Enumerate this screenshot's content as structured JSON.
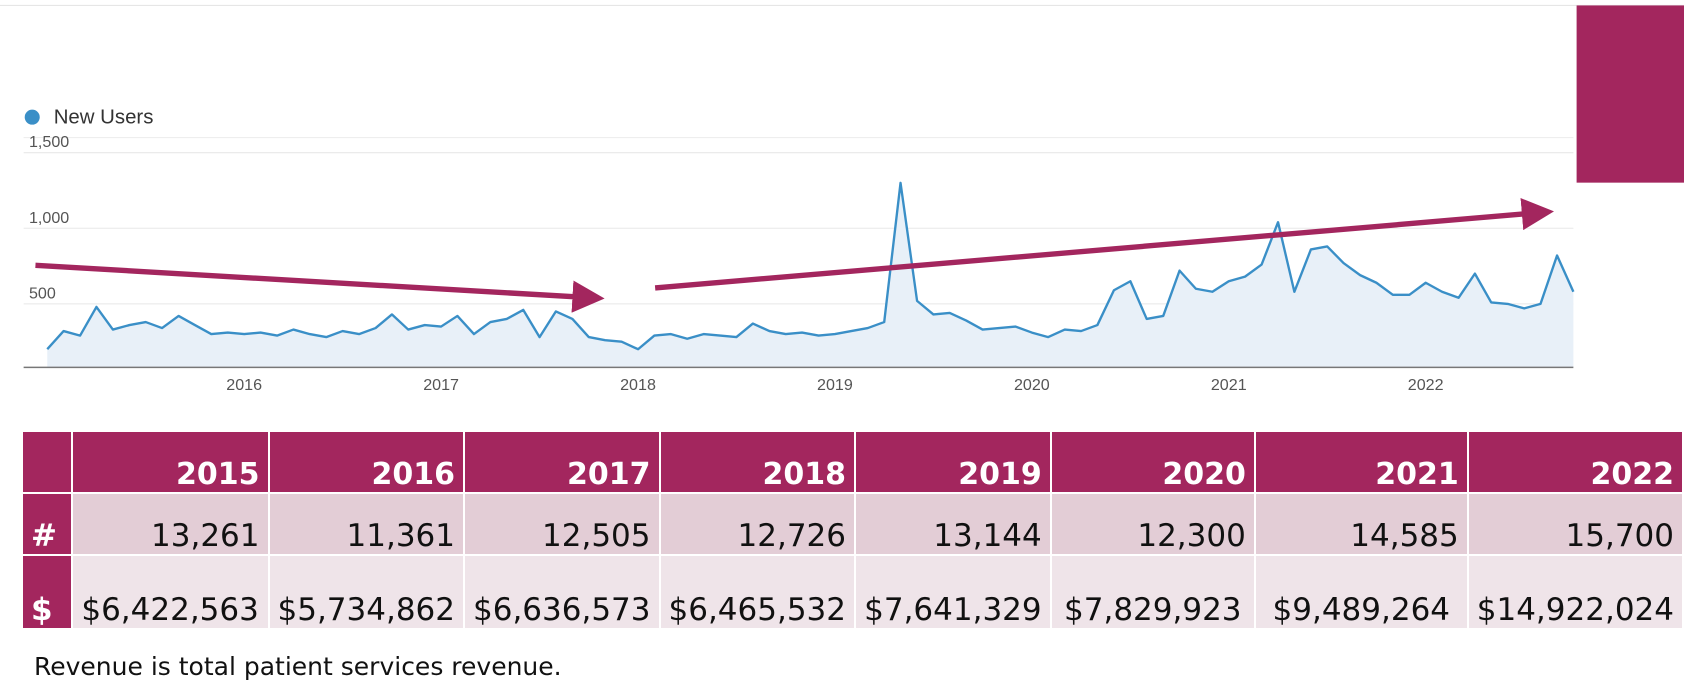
{
  "chart_data": {
    "type": "line",
    "legend": "top-left",
    "x": [
      2015.0,
      2015.083,
      2015.167,
      2015.25,
      2015.333,
      2015.417,
      2015.5,
      2015.583,
      2015.667,
      2015.75,
      2015.833,
      2015.917,
      2016.0,
      2016.083,
      2016.167,
      2016.25,
      2016.333,
      2016.417,
      2016.5,
      2016.583,
      2016.667,
      2016.75,
      2016.833,
      2016.917,
      2017.0,
      2017.083,
      2017.167,
      2017.25,
      2017.333,
      2017.417,
      2017.5,
      2017.583,
      2017.667,
      2017.75,
      2017.833,
      2017.917,
      2018.0,
      2018.083,
      2018.167,
      2018.25,
      2018.333,
      2018.417,
      2018.5,
      2018.583,
      2018.667,
      2018.75,
      2018.833,
      2018.917,
      2019.0,
      2019.083,
      2019.167,
      2019.25,
      2019.333,
      2019.417,
      2019.5,
      2019.583,
      2019.667,
      2019.75,
      2019.833,
      2019.917,
      2020.0,
      2020.083,
      2020.167,
      2020.25,
      2020.333,
      2020.417,
      2020.5,
      2020.583,
      2020.667,
      2020.75,
      2020.833,
      2020.917,
      2021.0,
      2021.083,
      2021.167,
      2021.25,
      2021.333,
      2021.417,
      2021.5,
      2021.583,
      2021.667,
      2021.75,
      2021.833,
      2021.917,
      2022.0,
      2022.083,
      2022.167,
      2022.25,
      2022.333,
      2022.417,
      2022.5,
      2022.583,
      2022.667,
      2022.75
    ],
    "series": [
      {
        "name": "New Users",
        "color": "#3a8fc7",
        "values": [
          200,
          320,
          290,
          480,
          330,
          360,
          380,
          340,
          420,
          360,
          300,
          310,
          300,
          310,
          290,
          330,
          300,
          280,
          320,
          300,
          340,
          430,
          330,
          360,
          350,
          420,
          300,
          380,
          400,
          460,
          280,
          450,
          400,
          280,
          260,
          250,
          200,
          290,
          300,
          270,
          300,
          290,
          280,
          370,
          320,
          300,
          310,
          290,
          300,
          320,
          340,
          380,
          1300,
          520,
          430,
          440,
          390,
          330,
          340,
          350,
          310,
          280,
          330,
          320,
          360,
          590,
          650,
          400,
          420,
          720,
          600,
          580,
          650,
          680,
          760,
          1040,
          580,
          860,
          880,
          770,
          690,
          640,
          560,
          560,
          640,
          580,
          540,
          700,
          510,
          500,
          470,
          500,
          820,
          580
        ]
      }
    ],
    "xlim": [
      2014.88,
      2022.75
    ],
    "xticks": [
      2016,
      2017,
      2018,
      2019,
      2020,
      2021,
      2022
    ],
    "ylim": [
      80,
      1600
    ],
    "yticks": [
      {
        "value": 500,
        "label": "500"
      },
      {
        "value": 1000,
        "label": "1,000"
      },
      {
        "value": 1500,
        "label": "1,500"
      }
    ],
    "grid": true
  },
  "table": {
    "columns": [
      "2015",
      "2016",
      "2017",
      "2018",
      "2019",
      "2020",
      "2021",
      "2022"
    ],
    "rows": [
      {
        "label": "#",
        "cells": [
          "13,261",
          "11,361",
          "12,505",
          "12,726",
          "13,144",
          "12,300",
          "14,585",
          "15,700"
        ]
      },
      {
        "label": "$",
        "cells": [
          "$6,422,563",
          "$5,734,862",
          "$6,636,573",
          "$6,465,532",
          "$7,641,329",
          "$7,829,923",
          "$9,489,264",
          "$14,922,024"
        ]
      }
    ]
  },
  "footnote": "Revenue is total patient services revenue."
}
